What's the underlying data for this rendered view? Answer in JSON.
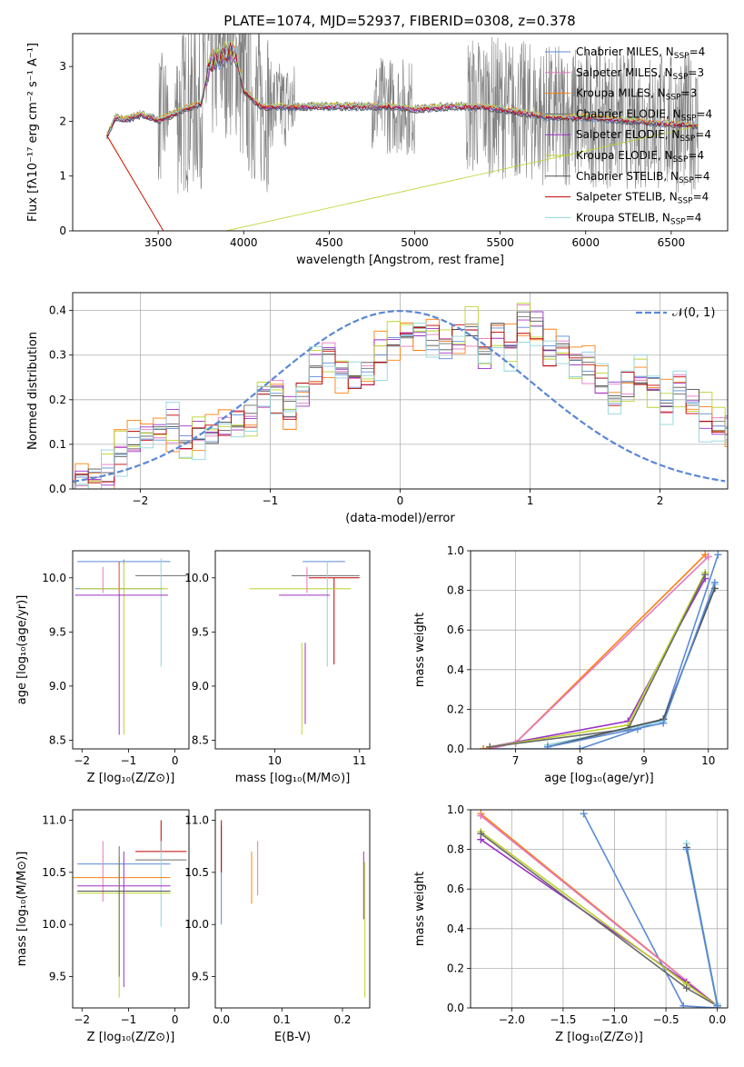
{
  "title": "PLATE=1074, MJD=52937, FIBERID=0308, z=0.378",
  "colors": {
    "grid": "#b0b0b0",
    "observed": "#808080",
    "gauss": "#5b87d6"
  },
  "series_styles": [
    {
      "name": "Chabrier MILES",
      "nssp": "4",
      "color": "#5b8ad8"
    },
    {
      "name": "Salpeter MILES",
      "nssp": "3",
      "color": "#e377c2"
    },
    {
      "name": "Kroupa MILES",
      "nssp": "3",
      "color": "#ff7f0e"
    },
    {
      "name": "Chabrier ELODIE",
      "nssp": "4",
      "color": "#6b6b6b"
    },
    {
      "name": "Salpeter ELODIE",
      "nssp": "4",
      "color": "#9b30c8"
    },
    {
      "name": "Kroupa ELODIE",
      "nssp": "4",
      "color": "#bcd22a"
    },
    {
      "name": "Chabrier STELIB",
      "nssp": "4",
      "color": "#505050"
    },
    {
      "name": "Salpeter STELIB",
      "nssp": "4",
      "color": "#c00000"
    },
    {
      "name": "Kroupa STELIB",
      "nssp": "4",
      "color": "#8fd4dc"
    }
  ],
  "chart_data": [
    {
      "id": "spectrum",
      "type": "line",
      "xlabel": "wavelength [Angstrom, rest frame]",
      "ylabel": "Flux [fλ10⁻¹⁷ erg cm⁻² s⁻¹ A⁻¹]",
      "xlim": [
        3000,
        6830
      ],
      "ylim": [
        0,
        3.6
      ],
      "xticks": [
        3500,
        4000,
        4500,
        5000,
        5500,
        6000,
        6500
      ],
      "yticks": [
        0,
        1,
        2,
        3
      ],
      "grid": false,
      "legend": "top-right",
      "observed_anchors": {
        "x": [
          3200,
          3250,
          3300,
          3400,
          3500,
          3550,
          3650,
          3750,
          3800,
          3850,
          3900,
          3950,
          4000,
          4100,
          4200,
          4300,
          4500,
          4700,
          4900,
          5000,
          5200,
          5400,
          5600,
          5800,
          6000,
          6200,
          6400,
          6660
        ],
        "y": [
          1.75,
          2.1,
          2.05,
          2.15,
          2.05,
          2.1,
          2.25,
          2.35,
          3.1,
          3.2,
          3.3,
          3.3,
          2.6,
          2.3,
          2.3,
          2.3,
          2.3,
          2.3,
          2.3,
          2.25,
          2.3,
          2.3,
          2.2,
          2.1,
          2.1,
          2.05,
          2.0,
          1.95
        ]
      }
    },
    {
      "id": "residuals",
      "type": "histogram",
      "xlabel": "(data-model)/error",
      "ylabel": "Normed distribution",
      "xlim": [
        -2.52,
        2.52
      ],
      "ylim": [
        0,
        0.44
      ],
      "xticks": [
        -2,
        -1,
        0,
        1,
        2
      ],
      "yticks": [
        0,
        0.1,
        0.2,
        0.3,
        0.4
      ],
      "grid": true,
      "legend": "top-right",
      "gauss_label": "𝒩(0, 1)",
      "bin_edges_start": -2.5,
      "bin_width": 0.1,
      "base_values": [
        0.025,
        0.03,
        0.035,
        0.075,
        0.105,
        0.11,
        0.12,
        0.14,
        0.11,
        0.125,
        0.115,
        0.13,
        0.155,
        0.17,
        0.2,
        0.21,
        0.18,
        0.22,
        0.27,
        0.295,
        0.265,
        0.245,
        0.265,
        0.3,
        0.32,
        0.335,
        0.36,
        0.33,
        0.31,
        0.34,
        0.35,
        0.3,
        0.365,
        0.32,
        0.38,
        0.37,
        0.305,
        0.33,
        0.28,
        0.27,
        0.23,
        0.21,
        0.225,
        0.245,
        0.23,
        0.2,
        0.22,
        0.205,
        0.165,
        0.15,
        0.145,
        0.12,
        0.115,
        0.085,
        0.08,
        0.065,
        0.05,
        0.045,
        0.04,
        0.035
      ]
    },
    {
      "id": "age_vs_Z",
      "type": "errorbar",
      "xlabel": "Z [log₁₀(Z/Z⊙)]",
      "ylabel": "age  [log₁₀(age/yr)]",
      "xlim": [
        -2.2,
        0.3
      ],
      "ylim": [
        8.42,
        10.25
      ],
      "xticks": [
        -2,
        -1,
        0
      ],
      "yticks": [
        8.5,
        9.0,
        9.5,
        10.0
      ],
      "points": [
        {
          "s": 0,
          "x": -1.1,
          "xe": 1.0,
          "y": 10.15,
          "ye": [
            0.02,
            0.02
          ]
        },
        {
          "s": 3,
          "x": -0.3,
          "xe": 0.55,
          "y": 10.02,
          "ye": [
            0.0,
            0.0
          ]
        },
        {
          "s": 8,
          "x": -0.3,
          "xe": 0.0,
          "y": 9.7,
          "ye": [
            0.52,
            0.48
          ]
        },
        {
          "s": 1,
          "x": -1.55,
          "xe": 0.0,
          "y": 9.98,
          "ye": [
            0.12,
            0.12
          ]
        },
        {
          "s": 4,
          "x": -1.2,
          "xe": 0.0,
          "y": 9.4,
          "ye": [
            0.85,
            0.75
          ]
        },
        {
          "s": 5,
          "x": -1.1,
          "xe": 0.0,
          "y": 9.4,
          "ye": [
            0.85,
            0.75
          ]
        },
        {
          "s": 0,
          "x": -1.2,
          "xe": 0.95,
          "y": 9.9,
          "ye": [
            0.0,
            0.0
          ]
        },
        {
          "s": 5,
          "x": -1.1,
          "xe": 0.95,
          "y": 9.9,
          "ye": [
            0.0,
            0.0
          ]
        },
        {
          "s": 4,
          "x": -1.15,
          "xe": 1.0,
          "y": 9.84,
          "ye": [
            0.0,
            0.0
          ]
        },
        {
          "s": 2,
          "x": -1.2,
          "xe": 0.0,
          "y": 10.0,
          "ye": [
            0.15,
            0.15
          ]
        }
      ]
    },
    {
      "id": "age_vs_mass",
      "type": "errorbar",
      "xlabel": "mass [log₁₀(M/M⊙)]",
      "ylabel": "",
      "xlim": [
        9.3,
        11.12
      ],
      "ylim": [
        8.42,
        10.25
      ],
      "xticks": [
        10,
        11
      ],
      "yticks": [
        8.5,
        9.0,
        9.5,
        10.0
      ],
      "points": [
        {
          "s": 0,
          "x": 10.58,
          "xe": 0.25,
          "y": 10.15,
          "ye": [
            0.0,
            0.0
          ]
        },
        {
          "s": 3,
          "x": 10.6,
          "xe": 0.4,
          "y": 10.02,
          "ye": [
            0.0,
            0.0
          ]
        },
        {
          "s": 7,
          "x": 10.7,
          "xe": 0.3,
          "y": 10.0,
          "ye": [
            0.8,
            0.0
          ]
        },
        {
          "s": 8,
          "x": 10.62,
          "xe": 0.0,
          "y": 9.7,
          "ye": [
            0.52,
            0.45
          ]
        },
        {
          "s": 5,
          "x": 10.3,
          "xe": 0.6,
          "y": 9.9,
          "ye": [
            0.0,
            0.0
          ]
        },
        {
          "s": 4,
          "x": 10.35,
          "xe": 0.3,
          "y": 9.84,
          "ye": [
            0.0,
            0.0
          ]
        },
        {
          "s": 5,
          "x": 10.32,
          "xe": 0.0,
          "y": 9.4,
          "ye": [
            0.85,
            0.0
          ]
        },
        {
          "s": 4,
          "x": 10.36,
          "xe": 0.0,
          "y": 9.4,
          "ye": [
            0.75,
            0.0
          ]
        },
        {
          "s": 1,
          "x": 10.38,
          "xe": 0.0,
          "y": 9.98,
          "ye": [
            0.12,
            0.12
          ]
        }
      ]
    },
    {
      "id": "weight_vs_age",
      "type": "line",
      "xlabel": "age  [log₁₀(age/yr)]",
      "ylabel": "mass weight",
      "xlim": [
        6.3,
        10.3
      ],
      "ylim": [
        0,
        1.0
      ],
      "xticks": [
        7,
        8,
        9,
        10
      ],
      "yticks": [
        0.0,
        0.2,
        0.4,
        0.6,
        0.8,
        1.0
      ],
      "grid": true,
      "series": [
        {
          "s": 0,
          "x": [
            6.5,
            8.0,
            8.9,
            9.3,
            10.15
          ],
          "y": [
            0.0,
            0.0,
            0.1,
            0.15,
            0.98
          ]
        },
        {
          "s": 2,
          "x": [
            6.5,
            7.0,
            9.95
          ],
          "y": [
            0.0,
            0.03,
            0.98
          ]
        },
        {
          "s": 1,
          "x": [
            6.6,
            7.0,
            10.0
          ],
          "y": [
            0.0,
            0.03,
            0.97
          ]
        },
        {
          "s": 4,
          "x": [
            6.6,
            8.75,
            9.95
          ],
          "y": [
            0.01,
            0.14,
            0.86
          ]
        },
        {
          "s": 5,
          "x": [
            6.6,
            8.75,
            9.95
          ],
          "y": [
            0.01,
            0.12,
            0.89
          ]
        },
        {
          "s": 3,
          "x": [
            6.6,
            8.75,
            9.95
          ],
          "y": [
            0.01,
            0.1,
            0.88
          ]
        },
        {
          "s": 8,
          "x": [
            7.5,
            9.3,
            10.1
          ],
          "y": [
            0.02,
            0.14,
            0.83
          ]
        },
        {
          "s": 6,
          "x": [
            7.5,
            9.3,
            10.1
          ],
          "y": [
            0.01,
            0.15,
            0.81
          ]
        },
        {
          "s": 0,
          "x": [
            7.5,
            9.3,
            10.1
          ],
          "y": [
            0.01,
            0.13,
            0.84
          ]
        }
      ]
    },
    {
      "id": "mass_vs_Z",
      "type": "errorbar",
      "xlabel": "Z [log₁₀(Z/Z⊙)]",
      "ylabel": "mass [log₁₀(M/M⊙)]",
      "xlim": [
        -2.2,
        0.3
      ],
      "ylim": [
        9.2,
        11.1
      ],
      "xticks": [
        -2,
        -1,
        0
      ],
      "yticks": [
        9.5,
        10.0,
        10.5,
        11.0
      ],
      "points": [
        {
          "s": 0,
          "x": -1.1,
          "xe": 1.0,
          "y": 10.58,
          "ye": [
            0.0,
            0.0
          ]
        },
        {
          "s": 3,
          "x": -0.3,
          "xe": 0.55,
          "y": 10.62,
          "ye": [
            0.0,
            0.0
          ]
        },
        {
          "s": 7,
          "x": -0.3,
          "xe": 0.55,
          "y": 10.7,
          "ye": [
            0.0,
            0.3
          ]
        },
        {
          "s": 8,
          "x": -0.3,
          "xe": 0.0,
          "y": 10.5,
          "ye": [
            0.52,
            0.3
          ]
        },
        {
          "s": 1,
          "x": -1.55,
          "xe": 0.0,
          "y": 10.5,
          "ye": [
            0.28,
            0.3
          ]
        },
        {
          "s": 2,
          "x": -1.3,
          "xe": 1.2,
          "y": 10.45,
          "ye": [
            0.0,
            0.0
          ]
        },
        {
          "s": 4,
          "x": -1.1,
          "xe": 1.0,
          "y": 10.37,
          "ye": [
            0.0,
            0.0
          ]
        },
        {
          "s": 5,
          "x": -1.1,
          "xe": 1.0,
          "y": 10.3,
          "ye": [
            0.0,
            0.0
          ]
        },
        {
          "s": 4,
          "x": -1.1,
          "xe": 0.0,
          "y": 10.05,
          "ye": [
            0.65,
            0.65
          ]
        },
        {
          "s": 5,
          "x": -1.2,
          "xe": 0.0,
          "y": 10.0,
          "ye": [
            0.7,
            0.65
          ]
        },
        {
          "s": 3,
          "x": -1.2,
          "xe": 0.0,
          "y": 10.25,
          "ye": [
            0.75,
            0.5
          ]
        },
        {
          "s": 6,
          "x": -1.1,
          "xe": 1.0,
          "y": 10.32,
          "ye": [
            0.0,
            0.0
          ]
        }
      ]
    },
    {
      "id": "mass_vs_EBV",
      "type": "errorbar",
      "xlabel": "E(B-V)",
      "ylabel": "",
      "xlim": [
        -0.01,
        0.245
      ],
      "ylim": [
        9.2,
        11.1
      ],
      "xticks": [
        0.0,
        0.1,
        0.2
      ],
      "yticks": [
        9.5,
        10.0,
        10.5,
        11.0
      ],
      "points": [
        {
          "s": 0,
          "x": 0.0,
          "xe": 0.0,
          "y": 10.5,
          "ye": [
            0.5,
            0.45
          ]
        },
        {
          "s": 7,
          "x": 0.0,
          "xe": 0.0,
          "y": 10.7,
          "ye": [
            0.2,
            0.3
          ]
        },
        {
          "s": 2,
          "x": 0.05,
          "xe": 0.0,
          "y": 10.45,
          "ye": [
            0.25,
            0.25
          ]
        },
        {
          "s": 1,
          "x": 0.06,
          "xe": 0.0,
          "y": 10.55,
          "ye": [
            0.27,
            0.25
          ]
        },
        {
          "s": 4,
          "x": 0.235,
          "xe": 0.0,
          "y": 10.5,
          "ye": [
            0.45,
            0.2
          ]
        },
        {
          "s": 5,
          "x": 0.237,
          "xe": 0.0,
          "y": 10.0,
          "ye": [
            0.7,
            0.6
          ]
        }
      ]
    },
    {
      "id": "weight_vs_Z",
      "type": "line",
      "xlabel": "Z [log₁₀(Z/Z⊙)]",
      "ylabel": "mass weight",
      "xlim": [
        -2.4,
        0.1
      ],
      "ylim": [
        0,
        1.0
      ],
      "xticks": [
        -2.0,
        -1.5,
        -1.0,
        -0.5,
        0.0
      ],
      "yticks": [
        0.0,
        0.2,
        0.4,
        0.6,
        0.8,
        1.0
      ],
      "grid": true,
      "series": [
        {
          "s": 0,
          "x": [
            -1.3,
            -0.33,
            0.0
          ],
          "y": [
            0.98,
            0.01,
            0.0
          ]
        },
        {
          "s": 2,
          "x": [
            -2.3,
            0.0
          ],
          "y": [
            0.98,
            0.01
          ]
        },
        {
          "s": 1,
          "x": [
            -2.3,
            0.0
          ],
          "y": [
            0.97,
            0.01
          ]
        },
        {
          "s": 4,
          "x": [
            -2.3,
            -0.3,
            0.0
          ],
          "y": [
            0.85,
            0.13,
            0.01
          ]
        },
        {
          "s": 5,
          "x": [
            -2.3,
            -0.3,
            0.0
          ],
          "y": [
            0.89,
            0.12,
            0.01
          ]
        },
        {
          "s": 3,
          "x": [
            -2.3,
            -0.3,
            0.0
          ],
          "y": [
            0.88,
            0.1,
            0.01
          ]
        },
        {
          "s": 8,
          "x": [
            -0.3,
            0.0
          ],
          "y": [
            0.83,
            0.02
          ]
        },
        {
          "s": 6,
          "x": [
            -0.3,
            0.0
          ],
          "y": [
            0.81,
            0.01
          ]
        },
        {
          "s": 0,
          "x": [
            -0.3,
            0.0
          ],
          "y": [
            0.8,
            0.01
          ]
        }
      ]
    }
  ]
}
